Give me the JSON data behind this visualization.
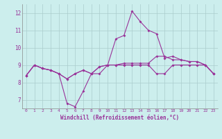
{
  "xlabel": "Windchill (Refroidissement éolien,°C)",
  "background_color": "#cceeed",
  "grid_color": "#aacccc",
  "line_color": "#993399",
  "tick_color": "#993399",
  "x": [
    0,
    1,
    2,
    3,
    4,
    5,
    6,
    7,
    8,
    9,
    10,
    11,
    12,
    13,
    14,
    15,
    16,
    17,
    18,
    19,
    20,
    21,
    22,
    23
  ],
  "series1": [
    8.4,
    9.0,
    8.8,
    8.7,
    8.5,
    6.8,
    6.6,
    7.5,
    8.5,
    8.5,
    9.0,
    10.5,
    10.7,
    12.1,
    11.5,
    11.0,
    10.8,
    9.4,
    9.5,
    9.3,
    9.2,
    9.2,
    9.0,
    8.5
  ],
  "series2": [
    8.4,
    9.0,
    8.8,
    8.7,
    8.5,
    8.2,
    8.5,
    8.7,
    8.5,
    8.9,
    9.0,
    9.0,
    9.0,
    9.0,
    9.0,
    9.0,
    8.5,
    8.5,
    9.0,
    9.0,
    9.0,
    9.0,
    9.0,
    8.5
  ],
  "series3": [
    8.4,
    9.0,
    8.8,
    8.7,
    8.5,
    8.2,
    8.5,
    8.7,
    8.5,
    8.9,
    9.0,
    9.0,
    9.1,
    9.1,
    9.1,
    9.1,
    9.5,
    9.5,
    9.3,
    9.3,
    9.2,
    9.2,
    9.0,
    8.5
  ],
  "ylim": [
    6.5,
    12.5
  ],
  "yticks": [
    7,
    8,
    9,
    10,
    11,
    12
  ],
  "xlim": [
    -0.5,
    23.5
  ],
  "xtick_fontsize": 4.5,
  "ytick_fontsize": 5.5,
  "xlabel_fontsize": 5.5
}
